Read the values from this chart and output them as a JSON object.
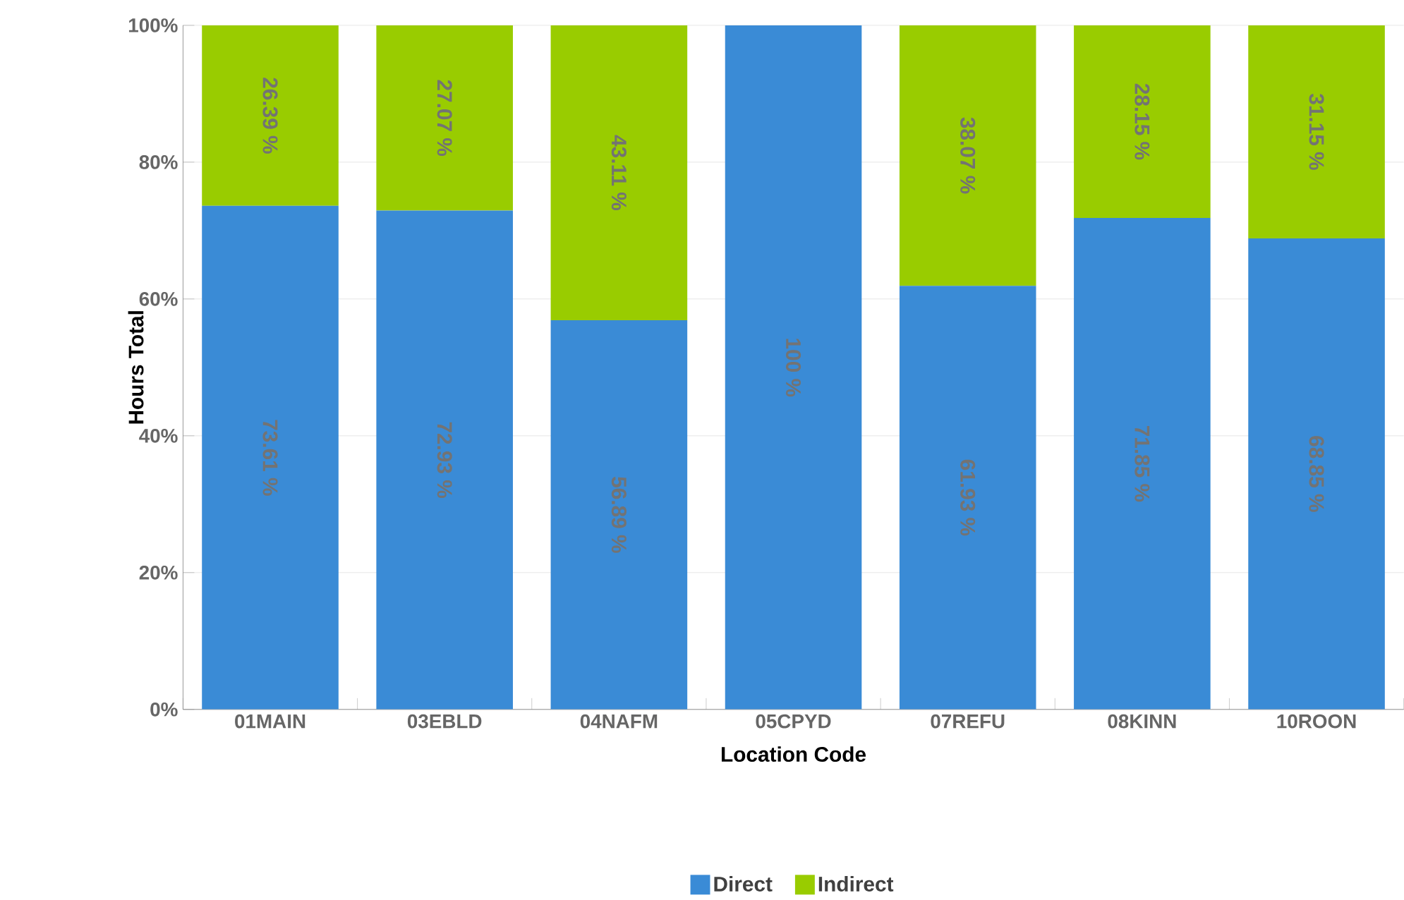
{
  "chart_data": {
    "type": "bar",
    "stacked": true,
    "xlabel": "Location Code",
    "ylabel": "Hours Total",
    "categories": [
      "01MAIN",
      "03EBLD",
      "04NAFM",
      "05CPYD",
      "07REFU",
      "08KINN",
      "10ROON"
    ],
    "series": [
      {
        "name": "Direct",
        "color": "#3a8bd6",
        "values": [
          73.61,
          72.93,
          56.89,
          100,
          61.93,
          71.85,
          68.85
        ],
        "value_labels": [
          "73.61 %",
          "72.93 %",
          "56.89 %",
          "100 %",
          "61.93 %",
          "71.85 %",
          "68.85 %"
        ]
      },
      {
        "name": "Indirect",
        "color": "#99cc00",
        "values": [
          26.39,
          27.07,
          43.11,
          0,
          38.07,
          28.15,
          31.15
        ],
        "value_labels": [
          "26.39 %",
          "27.07 %",
          "43.11 %",
          null,
          "38.07 %",
          "28.15 %",
          "31.15 %"
        ]
      }
    ],
    "ylim": [
      0,
      100
    ],
    "yticks": [
      {
        "value": 0,
        "label": "0%"
      },
      {
        "value": 20,
        "label": "20%"
      },
      {
        "value": 40,
        "label": "40%"
      },
      {
        "value": 60,
        "label": "60%"
      },
      {
        "value": 80,
        "label": "80%"
      },
      {
        "value": 100,
        "label": "100%"
      }
    ],
    "grid": "y",
    "legend": "bottom"
  }
}
